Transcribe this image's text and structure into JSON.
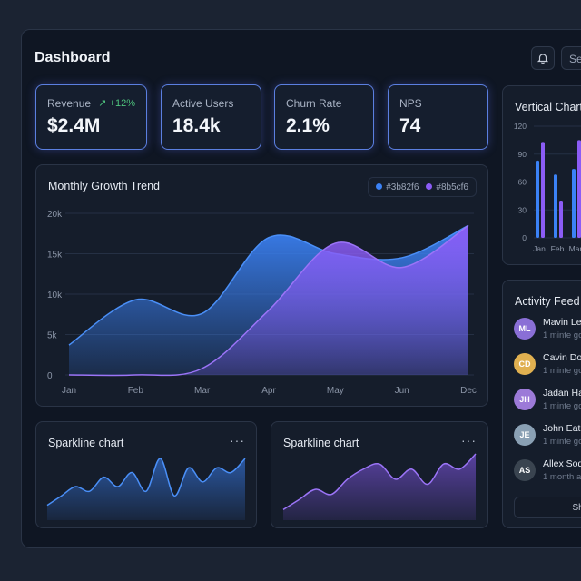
{
  "header": {
    "title": "Dashboard",
    "search_placeholder": "Se"
  },
  "kpis": [
    {
      "label": "Revenue",
      "value": "$2.4M",
      "delta": "↗ +12%"
    },
    {
      "label": "Active Users",
      "value": "18.4k"
    },
    {
      "label": "Churn Rate",
      "value": "2.1%"
    },
    {
      "label": "NPS",
      "value": "74"
    }
  ],
  "colors": {
    "blue": "#3b82f6",
    "purple": "#8b5cf6",
    "positive": "#4fc47e"
  },
  "chart_data": [
    {
      "type": "area",
      "title": "Monthly Growth Trend",
      "categories": [
        "Jan",
        "Feb",
        "Mar",
        "Apr",
        "May",
        "Jun",
        "Dec"
      ],
      "yticks": [
        "20k",
        "15k",
        "10k",
        "5k",
        "0"
      ],
      "ylim": [
        0,
        20000
      ],
      "legend": [
        "#3b82f6",
        "#8b5cf6"
      ],
      "series": [
        {
          "name": "#3b82f6",
          "values": [
            3700,
            9300,
            7600,
            17000,
            15000,
            14500,
            18500
          ]
        },
        {
          "name": "#8b5cf6",
          "values": [
            0,
            0,
            800,
            8000,
            16300,
            13300,
            18500
          ]
        }
      ]
    },
    {
      "type": "bar",
      "title": "Vertical Chart",
      "categories": [
        "Jan",
        "Feb",
        "Mar"
      ],
      "yticks": [
        "120",
        "90",
        "60",
        "30",
        "0"
      ],
      "ylim": [
        0,
        120
      ],
      "series": [
        {
          "name": "#3b82f6",
          "values": [
            83,
            68,
            74
          ]
        },
        {
          "name": "#8b5cf6",
          "values": [
            103,
            40,
            105
          ]
        }
      ]
    },
    {
      "type": "area",
      "title": "Sparkline chart",
      "values": [
        2,
        4,
        6,
        5,
        8,
        6,
        9,
        5,
        12,
        4,
        10,
        7,
        10,
        9,
        12
      ]
    },
    {
      "type": "area",
      "title": "Sparkline chart",
      "values": [
        1,
        3,
        5,
        4,
        7,
        9,
        10,
        7,
        9,
        6,
        10,
        9,
        12
      ]
    }
  ],
  "sparklines": [
    {
      "title": "Sparkline chart",
      "menu": "···"
    },
    {
      "title": "Sparkline chart",
      "menu": "···"
    }
  ],
  "activity": {
    "title": "Activity Feed",
    "items": [
      {
        "name": "Mavin Le",
        "time": "1 minte go",
        "initials": "ML",
        "color": "#8a6fd6"
      },
      {
        "name": "Cavin Dor",
        "time": "1 minte go",
        "initials": "CD",
        "color": "#e0b050"
      },
      {
        "name": "Jadan Ha",
        "time": "1 minte go",
        "initials": "JH",
        "color": "#9c7ad8"
      },
      {
        "name": "John Eath",
        "time": "1 minte go",
        "initials": "JE",
        "color": "#8aa0b4"
      },
      {
        "name": "Allex Sod",
        "time": "1 month a",
        "initials": "AS",
        "color": "#3a4450"
      }
    ],
    "show_more": "Shor"
  }
}
